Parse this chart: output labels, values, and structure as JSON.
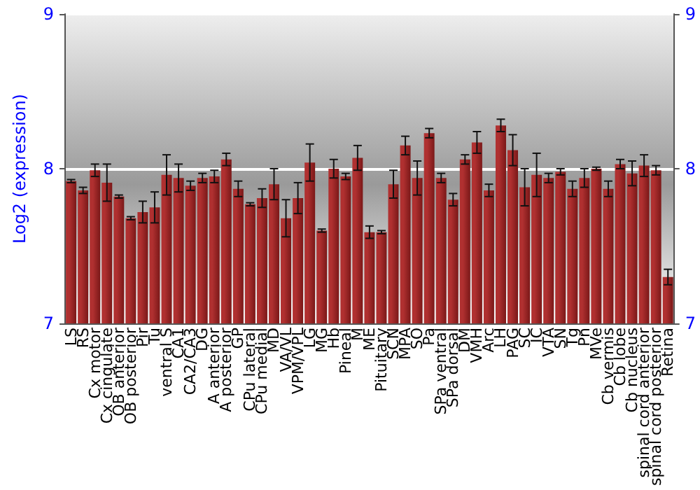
{
  "chart_data": {
    "type": "bar",
    "ylabel": "Log2 (expression)",
    "categories": [
      "LS",
      "RS",
      "Cx motor",
      "Cx cingulate",
      "OB anterior",
      "OB posterior",
      "Pir",
      "Tu",
      "ventral S",
      "CA1",
      "CA2/CA3",
      "DG",
      "A anterior",
      "A posterior",
      "GP",
      "CPu lateral",
      "CPu medial",
      "MD",
      "VA/VL",
      "VPM/VPL",
      "LG",
      "MG",
      "Hb",
      "Pineal",
      "M",
      "ME",
      "Pituitary",
      "SCN",
      "MPA",
      "SO",
      "Pa",
      "SPa ventral",
      "SPa dorsal",
      "DM",
      "VMH",
      "Arc",
      "LH",
      "PAG",
      "SC",
      "IC",
      "VTA",
      "SN",
      "Tg",
      "Pn",
      "MVe",
      "Cb vermis",
      "Cb lobe",
      "Cb nucleus",
      "spinal cord anterior",
      "spinal cord posterior",
      "Retina"
    ],
    "values": [
      7.92,
      7.86,
      7.99,
      7.91,
      7.82,
      7.68,
      7.72,
      7.75,
      7.96,
      7.94,
      7.89,
      7.94,
      7.95,
      8.06,
      7.87,
      7.77,
      7.81,
      7.9,
      7.68,
      7.81,
      8.04,
      7.6,
      8.0,
      7.95,
      8.07,
      7.59,
      7.59,
      7.9,
      8.15,
      7.94,
      8.23,
      7.94,
      7.8,
      8.06,
      8.17,
      7.86,
      8.28,
      8.12,
      7.88,
      7.96,
      7.94,
      7.98,
      7.87,
      7.94,
      8.0,
      7.87,
      8.03,
      7.97,
      8.02,
      7.99,
      7.3
    ],
    "errors": [
      0.01,
      0.02,
      0.04,
      0.12,
      0.01,
      0.01,
      0.07,
      0.1,
      0.13,
      0.09,
      0.03,
      0.03,
      0.04,
      0.04,
      0.05,
      0.01,
      0.06,
      0.1,
      0.12,
      0.1,
      0.12,
      0.01,
      0.06,
      0.02,
      0.08,
      0.04,
      0.01,
      0.09,
      0.06,
      0.11,
      0.03,
      0.03,
      0.04,
      0.03,
      0.07,
      0.04,
      0.04,
      0.1,
      0.12,
      0.14,
      0.03,
      0.02,
      0.05,
      0.06,
      0.01,
      0.05,
      0.03,
      0.08,
      0.07,
      0.03,
      0.05
    ],
    "color": "#b03030",
    "ylim": [
      7,
      9
    ],
    "yticks": [
      7,
      8,
      9
    ],
    "y2lim": [
      7,
      9
    ],
    "y2ticks": [
      7,
      8,
      9
    ],
    "grid": "y"
  }
}
